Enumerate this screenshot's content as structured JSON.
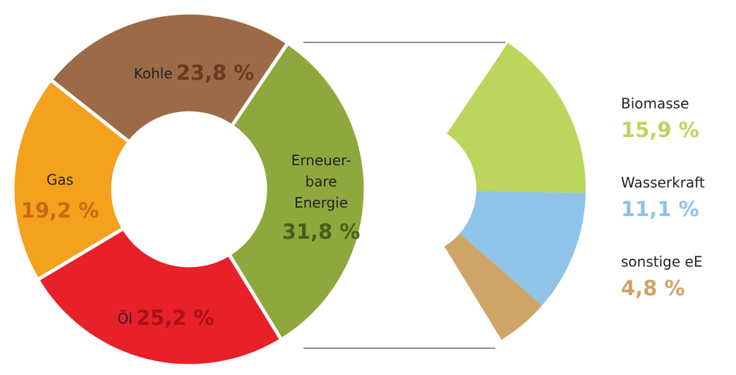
{
  "chart_data": {
    "type": "donut",
    "categories": [
      "Erneuer-\nbare\nEnergie",
      "Öl",
      "Gas",
      "Kohle"
    ],
    "values": [
      31.8,
      25.2,
      19.2,
      23.8
    ],
    "value_labels": [
      "31,8 %",
      "25,2 %",
      "19,2 %",
      "23,8 %"
    ],
    "colors": [
      "#8fa83e",
      "#e8202a",
      "#f4a11d",
      "#9b6b48"
    ],
    "label_colors": [
      "#4a5e1a",
      "#a8121a",
      "#c96a12",
      "#6b3a1e"
    ],
    "breakdown": {
      "categories": [
        "Biomasse",
        "Wasserkraft",
        "sonstige eE"
      ],
      "values": [
        15.9,
        11.1,
        4.8
      ],
      "value_labels": [
        "15,9 %",
        "11,1 %",
        "4,8 %"
      ],
      "colors": [
        "#bcd55c",
        "#8fc3e8",
        "#cfa567"
      ]
    }
  }
}
